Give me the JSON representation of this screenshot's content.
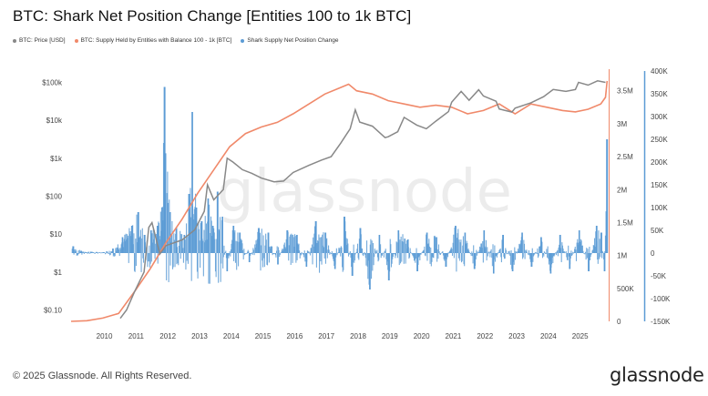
{
  "title": "BTC: Shark Net Position Change [Entities 100 to 1k BTC]",
  "legend": [
    {
      "label": "BTC: Price [USD]",
      "color": "#888888"
    },
    {
      "label": "BTC: Supply Held by Entities with Balance 100 - 1k [BTC]",
      "color": "#f0896a"
    },
    {
      "label": "Shark Supply Net Position Change",
      "color": "#5b9bd5"
    }
  ],
  "footer": {
    "copyright": "© 2025 Glassnode. All Rights Reserved.",
    "logo": "glassnode"
  },
  "watermark": "glassnode",
  "chart_data": {
    "type": "line",
    "x_ticks": [
      "2010",
      "2011",
      "2012",
      "2013",
      "2014",
      "2015",
      "2016",
      "2017",
      "2018",
      "2019",
      "2020",
      "2021",
      "2022",
      "2023",
      "2024",
      "2025"
    ],
    "y_left": {
      "label": "",
      "scale": "log",
      "ticks": [
        "$100k",
        "$10k",
        "$1k",
        "$100",
        "$10",
        "$1",
        "$0.10"
      ],
      "range": [
        0.05,
        200000
      ]
    },
    "y_right1": {
      "label": "",
      "ticks": [
        "3.5M",
        "3M",
        "2.5M",
        "2M",
        "1.5M",
        "1M",
        "500K",
        "0"
      ],
      "range": [
        0,
        3.8
      ]
    },
    "y_right2": {
      "label": "",
      "ticks": [
        "400K",
        "350K",
        "300K",
        "250K",
        "200K",
        "150K",
        "100K",
        "50K",
        "0",
        "-50K",
        "-100K",
        "-150K"
      ],
      "range": [
        -150000,
        400000
      ]
    },
    "series": [
      {
        "name": "BTC: Price [USD]",
        "axis": "left",
        "color": "#888888",
        "x": [
          2010.55,
          2010.75,
          2011.0,
          2011.3,
          2011.45,
          2011.55,
          2011.8,
          2012.0,
          2012.5,
          2012.9,
          2013.2,
          2013.3,
          2013.5,
          2013.8,
          2013.92,
          2014.1,
          2014.4,
          2014.7,
          2015.0,
          2015.4,
          2015.7,
          2016.0,
          2016.5,
          2016.9,
          2017.2,
          2017.5,
          2017.8,
          2017.96,
          2018.1,
          2018.5,
          2018.9,
          2019.0,
          2019.3,
          2019.5,
          2019.9,
          2020.2,
          2020.5,
          2020.9,
          2021.0,
          2021.3,
          2021.55,
          2021.85,
          2022.0,
          2022.4,
          2022.5,
          2022.9,
          2023.0,
          2023.5,
          2023.9,
          2024.2,
          2024.6,
          2024.9,
          2025.0,
          2025.3,
          2025.6,
          2025.85
        ],
        "y": [
          0.06,
          0.1,
          0.3,
          1,
          15,
          20,
          3,
          5,
          7,
          13,
          40,
          200,
          80,
          150,
          1000,
          800,
          500,
          400,
          300,
          240,
          250,
          420,
          650,
          900,
          1100,
          2500,
          6000,
          19000,
          9000,
          7000,
          3500,
          3700,
          5000,
          12000,
          7500,
          6000,
          9500,
          17000,
          30000,
          58000,
          34000,
          64000,
          44000,
          32000,
          20000,
          16500,
          21000,
          29000,
          42000,
          65000,
          58000,
          65000,
          100000,
          85000,
          110000,
          100000
        ]
      },
      {
        "name": "BTC: Supply Held by Entities with Balance 100 - 1k [BTC]",
        "axis": "right1",
        "color": "#f0896a",
        "x": [
          2009.0,
          2009.5,
          2010.0,
          2010.5,
          2011.0,
          2011.5,
          2012.0,
          2012.5,
          2013.0,
          2013.5,
          2014.0,
          2014.5,
          2015.0,
          2015.5,
          2016.0,
          2016.5,
          2017.0,
          2017.5,
          2017.75,
          2018.0,
          2018.5,
          2019.0,
          2019.5,
          2020.0,
          2020.5,
          2021.0,
          2021.5,
          2022.0,
          2022.5,
          2023.0,
          2023.5,
          2024.0,
          2024.5,
          2024.9,
          2025.3,
          2025.7,
          2025.85,
          2025.9
        ],
        "y": [
          0.0,
          0.01,
          0.05,
          0.12,
          0.45,
          0.8,
          1.2,
          1.55,
          1.95,
          2.3,
          2.65,
          2.85,
          2.95,
          3.02,
          3.15,
          3.3,
          3.45,
          3.55,
          3.6,
          3.5,
          3.45,
          3.35,
          3.3,
          3.25,
          3.28,
          3.25,
          3.15,
          3.2,
          3.3,
          3.15,
          3.3,
          3.25,
          3.2,
          3.18,
          3.22,
          3.3,
          3.4,
          3.65
        ]
      },
      {
        "name": "Shark Supply Net Position Change",
        "axis": "right2",
        "color": "#5b9bd5",
        "x": [
          2009.05,
          2009.3,
          2009.6,
          2010.0,
          2010.3,
          2010.6,
          2010.9,
          2011.1,
          2011.3,
          2011.5,
          2011.7,
          2011.85,
          2011.93,
          2012.1,
          2012.3,
          2012.55,
          2012.7,
          2012.8,
          2012.93,
          2013.1,
          2013.3,
          2013.45,
          2013.6,
          2013.75,
          2013.9,
          2014.1,
          2014.3,
          2014.6,
          2014.9,
          2015.2,
          2015.5,
          2015.8,
          2016.1,
          2016.4,
          2016.7,
          2017.0,
          2017.3,
          2017.6,
          2017.85,
          2018.1,
          2018.4,
          2018.7,
          2019.0,
          2019.3,
          2019.6,
          2019.9,
          2020.2,
          2020.5,
          2020.8,
          2021.1,
          2021.4,
          2021.7,
          2022.0,
          2022.3,
          2022.6,
          2022.9,
          2023.2,
          2023.5,
          2023.8,
          2024.1,
          2024.4,
          2024.7,
          2025.0,
          2025.3,
          2025.55,
          2025.7,
          2025.8,
          2025.88
        ],
        "y": [
          15000,
          5000,
          3000,
          2000,
          10000,
          35000,
          60000,
          90000,
          40000,
          50000,
          60000,
          100000,
          365000,
          90000,
          55000,
          40000,
          130000,
          310000,
          100000,
          70000,
          120000,
          60000,
          135000,
          80000,
          -40000,
          60000,
          45000,
          -20000,
          55000,
          45000,
          -25000,
          50000,
          40000,
          -30000,
          70000,
          45000,
          -35000,
          80000,
          -50000,
          55000,
          -80000,
          40000,
          -60000,
          50000,
          30000,
          -40000,
          45000,
          35000,
          -30000,
          60000,
          45000,
          -35000,
          50000,
          -45000,
          40000,
          -40000,
          45000,
          -30000,
          35000,
          -45000,
          40000,
          -35000,
          50000,
          -40000,
          60000,
          45000,
          -40000,
          250000
        ]
      }
    ]
  }
}
